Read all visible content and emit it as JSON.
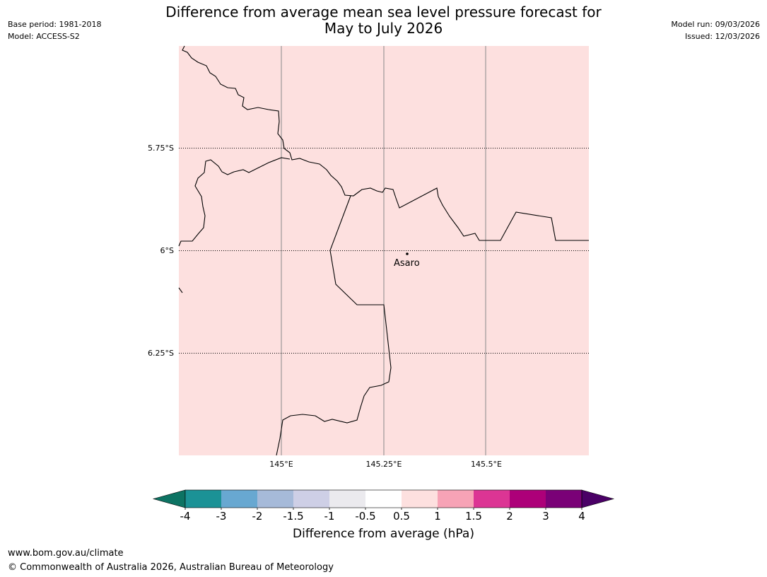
{
  "title_line1": "Difference from average mean sea level pressure forecast for",
  "title_line2": "May to July 2026",
  "meta_left": {
    "base_period": "Base period: 1981-2018",
    "model": "Model: ACCESS-S2"
  },
  "meta_right": {
    "model_run": "Model run: 09/03/2026",
    "issued": "Issued: 12/03/2026"
  },
  "map": {
    "fill_color": "#fde0df",
    "place": {
      "name": "Asaro",
      "lon": 145.28,
      "lat": -6.02
    },
    "lat_labels": [
      "5.75°S",
      "6°S",
      "6.25°S"
    ],
    "lon_labels": [
      "145°E",
      "145.25°E",
      "145.5°E"
    ]
  },
  "colorbar": {
    "label": "Difference from average (hPa)",
    "tick_labels": [
      "-4",
      "-3",
      "-2",
      "-1.5",
      "-1",
      "-0.5",
      "0.5",
      "1",
      "1.5",
      "2",
      "3",
      "4"
    ],
    "under_color": "#0d7363",
    "over_color": "#4a0066",
    "colors": [
      "#1b9296",
      "#68a8d1",
      "#a6bad9",
      "#cecfe6",
      "#ebeaee",
      "#ffffff",
      "#fde0df",
      "#f7a3b6",
      "#dc3594",
      "#ad0079",
      "#7a0177"
    ]
  },
  "footer": {
    "url": "www.bom.gov.au/climate",
    "copyright": "© Commonwealth of Australia 2026, Australian Bureau of Meteorology"
  }
}
